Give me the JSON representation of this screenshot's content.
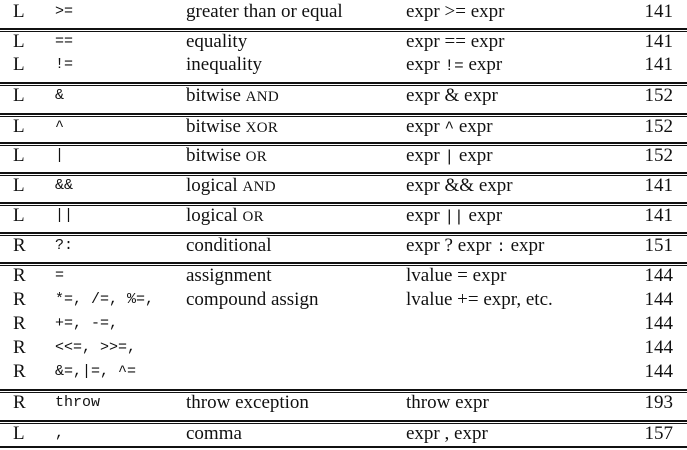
{
  "groups": [
    {
      "rows": [
        {
          "assoc": "L",
          "op": ">=",
          "name": "greater than or equal",
          "use": [
            "expr >= expr"
          ],
          "page": "141"
        }
      ]
    },
    {
      "rows": [
        {
          "assoc": "L",
          "op": "==",
          "name": "equality",
          "use": [
            "expr == expr"
          ],
          "page": "141"
        },
        {
          "assoc": "L",
          "op": "!=",
          "name": "inequality",
          "use": [
            "expr ",
            "!=",
            " expr"
          ],
          "page": "141"
        }
      ]
    },
    {
      "rows": [
        {
          "assoc": "L",
          "op": "&",
          "name": [
            "bitwise ",
            "AND"
          ],
          "use": [
            "expr & expr"
          ],
          "page": "152"
        }
      ]
    },
    {
      "rows": [
        {
          "assoc": "L",
          "op": "^",
          "name": [
            "bitwise ",
            "XOR"
          ],
          "use": [
            "expr ",
            "^",
            " expr"
          ],
          "page": "152"
        }
      ]
    },
    {
      "rows": [
        {
          "assoc": "L",
          "op": "|",
          "name": [
            "bitwise ",
            "OR"
          ],
          "use": [
            "expr ",
            "|",
            " expr"
          ],
          "page": "152"
        }
      ]
    },
    {
      "rows": [
        {
          "assoc": "L",
          "op": "&&",
          "name": [
            "logical ",
            "AND"
          ],
          "use": [
            "expr && expr"
          ],
          "page": "141"
        }
      ]
    },
    {
      "rows": [
        {
          "assoc": "L",
          "op": "||",
          "name": [
            "logical ",
            "OR"
          ],
          "use": [
            "expr ",
            "||",
            " expr"
          ],
          "page": "141"
        }
      ]
    },
    {
      "rows": [
        {
          "assoc": "R",
          "op": "?:",
          "name": "conditional",
          "use": [
            "expr ? expr ",
            ":",
            " expr"
          ],
          "page": "151"
        }
      ]
    },
    {
      "rows": [
        {
          "assoc": "R",
          "op": "=",
          "name": "assignment",
          "use": [
            "lvalue = expr"
          ],
          "page": "144"
        },
        {
          "assoc": "R",
          "op": "*=, /=, %=,",
          "name": "compound assign",
          "use": [
            "lvalue += expr, etc."
          ],
          "page": "144"
        },
        {
          "assoc": "R",
          "op": "+=, -=,",
          "name": "",
          "use": [
            ""
          ],
          "page": "144"
        },
        {
          "assoc": "R",
          "op": "<<=, >>=,",
          "name": "",
          "use": [
            ""
          ],
          "page": "144"
        },
        {
          "assoc": "R",
          "op": "&=,|=, ^=",
          "name": "",
          "use": [
            ""
          ],
          "page": "144"
        }
      ]
    },
    {
      "rows": [
        {
          "assoc": "R",
          "op": "throw",
          "name": "throw exception",
          "use": [
            "throw expr"
          ],
          "page": "193"
        }
      ]
    },
    {
      "rows": [
        {
          "assoc": "L",
          "op": ",",
          "name": "comma",
          "use": [
            "expr , expr"
          ],
          "page": "157"
        }
      ]
    }
  ]
}
